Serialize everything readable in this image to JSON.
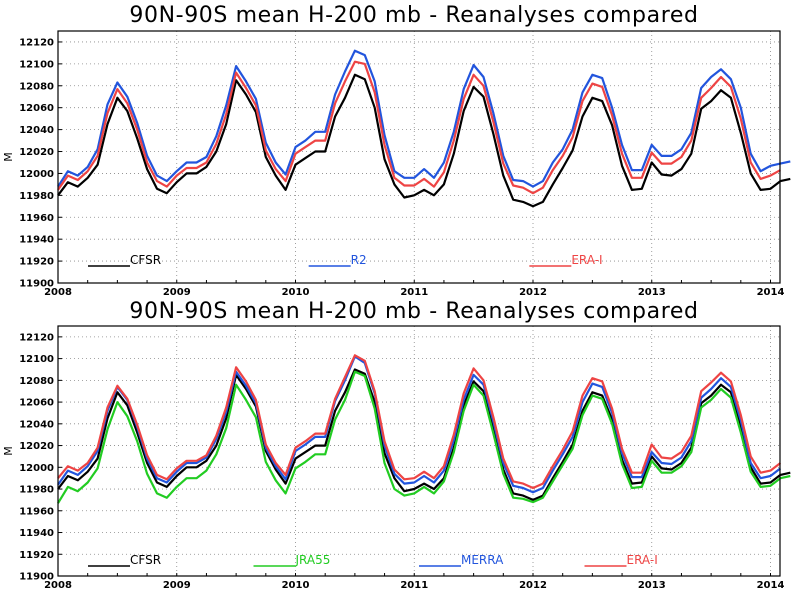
{
  "colors": {
    "CFSR": "#000000",
    "R1": "#22cc22",
    "R2": "#2255dd",
    "ERA-I": "#ee4444",
    "JRA55": "#22cc22",
    "MERRA": "#2255dd"
  },
  "chart_data": [
    {
      "type": "line",
      "title": "90N-90S mean H-200 mb - Reanalyses compared",
      "xlabel": "",
      "ylabel": "M",
      "xlim": [
        2008.0,
        2014.08
      ],
      "ylim": [
        11900,
        12130
      ],
      "grid": true,
      "grid_style": "dotted",
      "legend_position": "bottom-inside",
      "x_ticks": [
        "2008",
        "2009",
        "2010",
        "2011",
        "2012",
        "2013",
        "2014"
      ],
      "y_ticks": [
        "11900",
        "11920",
        "11940",
        "11960",
        "11980",
        "12000",
        "12020",
        "12040",
        "12060",
        "12080",
        "12100",
        "12120"
      ],
      "x_start": 2008.0,
      "x_step": 0.08333,
      "series": [
        {
          "name": "CFSR",
          "color": "#000000",
          "values": [
            11980,
            11992,
            11988,
            11996,
            12008,
            12045,
            12069,
            12057,
            12032,
            12004,
            11986,
            11982,
            11992,
            12000,
            12000,
            12006,
            12020,
            12045,
            12085,
            12072,
            12056,
            12015,
            11998,
            11985,
            12008,
            12014,
            12020,
            12020,
            12052,
            12069,
            12090,
            12086,
            12060,
            12013,
            11990,
            11978,
            11980,
            11985,
            11980,
            11990,
            12018,
            12057,
            12079,
            12070,
            12036,
            11998,
            11976,
            11974,
            11970,
            11974,
            11990,
            12005,
            12021,
            12052,
            12069,
            12066,
            12044,
            12007,
            11985,
            11986,
            12010,
            11999,
            11998,
            12004,
            12018,
            12059,
            12066,
            12076,
            12069,
            12037,
            12000,
            11985,
            11986,
            11993,
            11995
          ]
        },
        {
          "name": "R2",
          "color": "#2255dd",
          "values": [
            11988,
            12002,
            11998,
            12006,
            12022,
            12063,
            12083,
            12070,
            12046,
            12016,
            11998,
            11993,
            12002,
            12010,
            12010,
            12015,
            12034,
            12062,
            12098,
            12084,
            12068,
            12028,
            12010,
            11999,
            12024,
            12030,
            12038,
            12038,
            12072,
            12093,
            12112,
            12108,
            12084,
            12035,
            12002,
            11996,
            11996,
            12004,
            11996,
            12010,
            12038,
            12077,
            12099,
            12088,
            12055,
            12016,
            11994,
            11993,
            11988,
            11993,
            12010,
            12022,
            12040,
            12074,
            12090,
            12087,
            12060,
            12026,
            12003,
            12003,
            12026,
            12016,
            12016,
            12022,
            12037,
            12078,
            12088,
            12095,
            12086,
            12060,
            12018,
            12002,
            12007,
            12009,
            12011
          ]
        },
        {
          "name": "ERA-I",
          "color": "#ee4444",
          "values": [
            11985,
            11998,
            11994,
            12002,
            12016,
            12055,
            12077,
            12064,
            12040,
            12010,
            11993,
            11988,
            11998,
            12005,
            12005,
            12010,
            12027,
            12054,
            12092,
            12078,
            12062,
            12021,
            12004,
            11993,
            12018,
            12024,
            12030,
            12030,
            12064,
            12084,
            12102,
            12100,
            12074,
            12026,
            11996,
            11989,
            11989,
            11995,
            11988,
            12001,
            12030,
            12068,
            12090,
            12080,
            12047,
            12009,
            11989,
            11987,
            11982,
            11987,
            12003,
            12016,
            12033,
            12066,
            12082,
            12079,
            12053,
            12018,
            11996,
            11996,
            12019,
            12009,
            12009,
            12015,
            12030,
            12069,
            12078,
            12088,
            12079,
            12050,
            12010,
            11995,
            11998,
            12003
          ]
        }
      ]
    },
    {
      "type": "line",
      "title": "90N-90S mean H-200 mb - Reanalyses compared",
      "xlabel": "",
      "ylabel": "M",
      "xlim": [
        2008.0,
        2014.08
      ],
      "ylim": [
        11900,
        12130
      ],
      "grid": true,
      "grid_style": "dotted",
      "legend_position": "bottom-inside",
      "x_ticks": [
        "2008",
        "2009",
        "2010",
        "2011",
        "2012",
        "2013",
        "2014"
      ],
      "y_ticks": [
        "11900",
        "11920",
        "11940",
        "11960",
        "11980",
        "12000",
        "12020",
        "12040",
        "12060",
        "12080",
        "12100",
        "12120"
      ],
      "x_start": 2008.0,
      "x_step": 0.08333,
      "series": [
        {
          "name": "CFSR",
          "color": "#000000",
          "values": [
            11980,
            11992,
            11988,
            11996,
            12008,
            12045,
            12069,
            12057,
            12032,
            12004,
            11986,
            11982,
            11992,
            12000,
            12000,
            12006,
            12020,
            12045,
            12085,
            12072,
            12056,
            12015,
            11998,
            11985,
            12008,
            12014,
            12020,
            12020,
            12052,
            12069,
            12090,
            12086,
            12060,
            12013,
            11990,
            11978,
            11980,
            11985,
            11980,
            11990,
            12018,
            12057,
            12079,
            12070,
            12036,
            11998,
            11976,
            11974,
            11970,
            11974,
            11990,
            12005,
            12021,
            12052,
            12069,
            12066,
            12044,
            12007,
            11985,
            11986,
            12010,
            11999,
            11998,
            12004,
            12018,
            12059,
            12066,
            12076,
            12069,
            12037,
            12000,
            11985,
            11986,
            11993,
            11995
          ]
        },
        {
          "name": "JRA55",
          "color": "#22cc22",
          "values": [
            11967,
            11982,
            11978,
            11986,
            11999,
            12035,
            12060,
            12047,
            12024,
            11994,
            11976,
            11972,
            11982,
            11990,
            11990,
            11997,
            12012,
            12036,
            12076,
            12062,
            12046,
            12005,
            11988,
            11976,
            11999,
            12005,
            12012,
            12012,
            12044,
            12062,
            12088,
            12084,
            12054,
            12004,
            11980,
            11974,
            11976,
            11982,
            11976,
            11987,
            12014,
            12052,
            12076,
            12066,
            12031,
            11994,
            11972,
            11971,
            11968,
            11972,
            11987,
            12002,
            12017,
            12048,
            12066,
            12063,
            12040,
            12003,
            11981,
            11982,
            12006,
            11995,
            11995,
            12001,
            12014,
            12055,
            12062,
            12072,
            12064,
            12032,
            11996,
            11982,
            11983,
            11990,
            11992
          ]
        },
        {
          "name": "MERRA",
          "color": "#2255dd",
          "values": [
            11984,
            11997,
            11993,
            12001,
            12015,
            12052,
            12074,
            12062,
            12037,
            12008,
            11990,
            11986,
            11996,
            12004,
            12004,
            12009,
            12026,
            12051,
            12088,
            12075,
            12059,
            12018,
            12001,
            11989,
            12015,
            12021,
            12028,
            12028,
            12061,
            12080,
            12102,
            12096,
            12068,
            12020,
            11994,
            11985,
            11986,
            11992,
            11986,
            11997,
            12025,
            12062,
            12085,
            12076,
            12042,
            12004,
            11983,
            11981,
            11977,
            11981,
            11997,
            12012,
            12028,
            12060,
            12077,
            12074,
            12050,
            12013,
            11991,
            11991,
            12014,
            12004,
            12003,
            12009,
            12024,
            12064,
            12072,
            12082,
            12074,
            12043,
            12004,
            11990,
            11992,
            11999
          ]
        },
        {
          "name": "ERA-I",
          "color": "#ee4444",
          "values": [
            11990,
            12001,
            11997,
            12004,
            12018,
            12055,
            12075,
            12063,
            12039,
            12011,
            11993,
            11989,
            11999,
            12006,
            12006,
            12011,
            12029,
            12055,
            12092,
            12079,
            12062,
            12021,
            12004,
            11993,
            12018,
            12024,
            12031,
            12031,
            12063,
            12083,
            12103,
            12098,
            12070,
            12024,
            11998,
            11989,
            11990,
            11996,
            11990,
            12001,
            12030,
            12068,
            12091,
            12080,
            12046,
            12008,
            11987,
            11985,
            11981,
            11985,
            12001,
            12016,
            12033,
            12066,
            12082,
            12079,
            12054,
            12017,
            11995,
            11995,
            12021,
            12009,
            12008,
            12014,
            12029,
            12070,
            12078,
            12087,
            12079,
            12048,
            12010,
            11995,
            11997,
            12004
          ]
        }
      ]
    }
  ]
}
